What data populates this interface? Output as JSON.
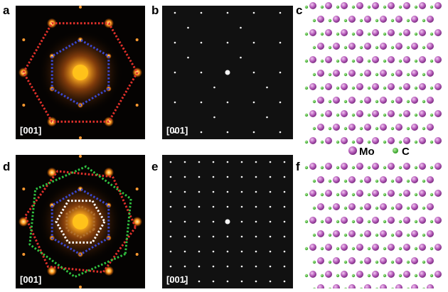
{
  "panels": [
    {
      "label": "a",
      "zone_axis": "[001]"
    },
    {
      "label": "b",
      "zone_axis": "[001]"
    },
    {
      "label": "c"
    },
    {
      "label": "d",
      "zone_axis": "[001]"
    },
    {
      "label": "e",
      "zone_axis": "[001]"
    },
    {
      "label": "f"
    }
  ],
  "legend": {
    "items": [
      {
        "label": "Mo"
      },
      {
        "label": "C"
      }
    ]
  }
}
